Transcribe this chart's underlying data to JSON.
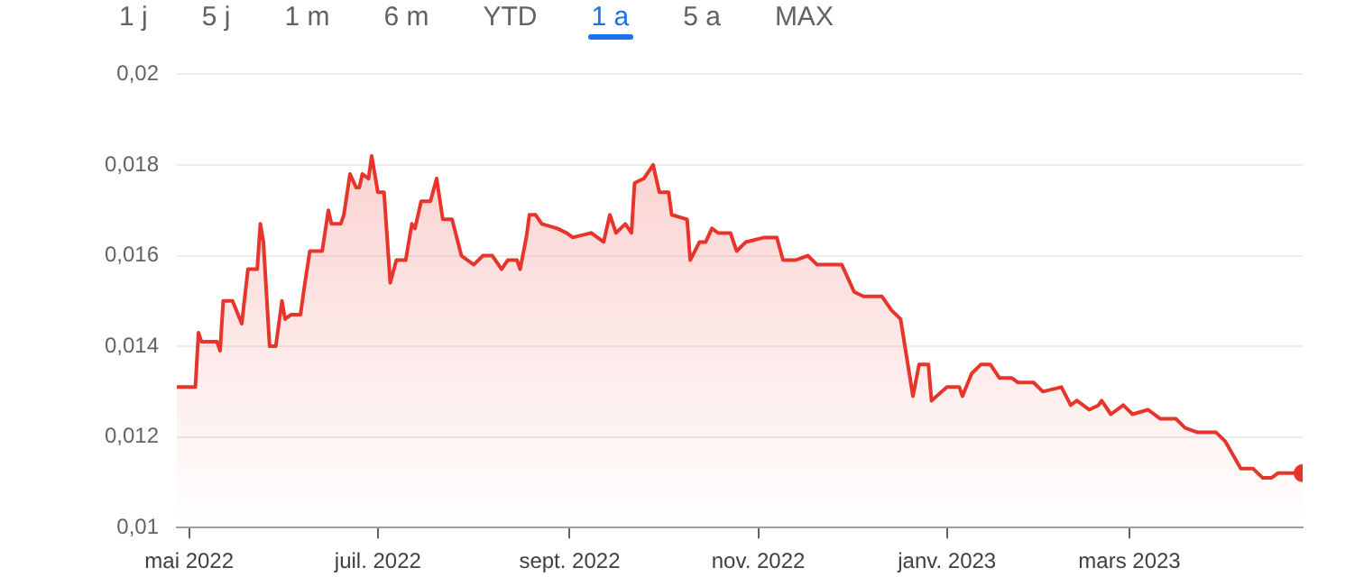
{
  "chart_data": {
    "type": "area",
    "annotations": [
      "1 j",
      "5 j",
      "1 m",
      "6 m",
      "YTD",
      "1 a",
      "5 a",
      "MAX"
    ],
    "x": [
      "2022-04-27",
      "2022-05-03",
      "2022-05-04",
      "2022-05-05",
      "2022-05-10",
      "2022-05-11",
      "2022-05-12",
      "2022-05-15",
      "2022-05-18",
      "2022-05-20",
      "2022-05-23",
      "2022-05-24",
      "2022-05-25",
      "2022-05-27",
      "2022-05-29",
      "2022-05-31",
      "2022-06-01",
      "2022-06-03",
      "2022-06-06",
      "2022-06-07",
      "2022-06-09",
      "2022-06-13",
      "2022-06-15",
      "2022-06-16",
      "2022-06-19",
      "2022-06-20",
      "2022-06-22",
      "2022-06-24",
      "2022-06-25",
      "2022-06-26",
      "2022-06-28",
      "2022-06-29",
      "2022-07-01",
      "2022-07-03",
      "2022-07-05",
      "2022-07-07",
      "2022-07-10",
      "2022-07-12",
      "2022-07-13",
      "2022-07-15",
      "2022-07-18",
      "2022-07-20",
      "2022-07-22",
      "2022-07-25",
      "2022-07-28",
      "2022-08-01",
      "2022-08-04",
      "2022-08-07",
      "2022-08-10",
      "2022-08-12",
      "2022-08-15",
      "2022-08-16",
      "2022-08-18",
      "2022-08-19",
      "2022-08-21",
      "2022-08-23",
      "2022-08-28",
      "2022-08-31",
      "2022-09-02",
      "2022-09-08",
      "2022-09-12",
      "2022-09-14",
      "2022-09-16",
      "2022-09-19",
      "2022-09-21",
      "2022-09-22",
      "2022-09-25",
      "2022-09-28",
      "2022-09-30",
      "2022-10-03",
      "2022-10-04",
      "2022-10-09",
      "2022-10-10",
      "2022-10-13",
      "2022-10-15",
      "2022-10-17",
      "2022-10-19",
      "2022-10-23",
      "2022-10-25",
      "2022-10-28",
      "2022-11-03",
      "2022-11-07",
      "2022-11-09",
      "2022-11-13",
      "2022-11-17",
      "2022-11-20",
      "2022-11-28",
      "2022-12-02",
      "2022-12-05",
      "2022-12-11",
      "2022-12-14",
      "2022-12-17",
      "2022-12-21",
      "2022-12-23",
      "2022-12-26",
      "2022-12-27",
      "2023-01-01",
      "2023-01-05",
      "2023-01-06",
      "2023-01-09",
      "2023-01-12",
      "2023-01-15",
      "2023-01-18",
      "2023-01-22",
      "2023-01-24",
      "2023-01-29",
      "2023-02-01",
      "2023-02-07",
      "2023-02-10",
      "2023-02-12",
      "2023-02-16",
      "2023-02-19",
      "2023-02-20",
      "2023-02-23",
      "2023-02-27",
      "2023-03-02",
      "2023-03-07",
      "2023-03-11",
      "2023-03-16",
      "2023-03-19",
      "2023-03-23",
      "2023-03-29",
      "2023-04-01",
      "2023-04-06",
      "2023-04-10",
      "2023-04-13",
      "2023-04-16",
      "2023-04-18",
      "2023-04-26"
    ],
    "series": [
      {
        "color": "#e8352b",
        "values": [
          0.0131,
          0.0131,
          0.0143,
          0.0141,
          0.0141,
          0.0139,
          0.015,
          0.015,
          0.0145,
          0.0157,
          0.0157,
          0.0167,
          0.0163,
          0.014,
          0.014,
          0.015,
          0.0146,
          0.0147,
          0.0147,
          0.0152,
          0.0161,
          0.0161,
          0.017,
          0.0167,
          0.0167,
          0.0169,
          0.0178,
          0.0175,
          0.0175,
          0.0178,
          0.0177,
          0.0182,
          0.0174,
          0.0174,
          0.0154,
          0.0159,
          0.0159,
          0.0167,
          0.0166,
          0.0172,
          0.0172,
          0.0177,
          0.0168,
          0.0168,
          0.016,
          0.0158,
          0.016,
          0.016,
          0.0157,
          0.0159,
          0.0159,
          0.0157,
          0.0164,
          0.0169,
          0.0169,
          0.0167,
          0.0166,
          0.0165,
          0.0164,
          0.0165,
          0.0163,
          0.0169,
          0.0165,
          0.0167,
          0.0165,
          0.0176,
          0.0177,
          0.018,
          0.0174,
          0.0174,
          0.0169,
          0.0168,
          0.0159,
          0.0163,
          0.0163,
          0.0166,
          0.0165,
          0.0165,
          0.0161,
          0.0163,
          0.0164,
          0.0164,
          0.0159,
          0.0159,
          0.016,
          0.0158,
          0.0158,
          0.0152,
          0.0151,
          0.0151,
          0.0148,
          0.0146,
          0.0129,
          0.0136,
          0.0136,
          0.0128,
          0.0131,
          0.0131,
          0.0129,
          0.0134,
          0.0136,
          0.0136,
          0.0133,
          0.0133,
          0.0132,
          0.0132,
          0.013,
          0.0131,
          0.0127,
          0.0128,
          0.0126,
          0.0127,
          0.0128,
          0.0125,
          0.0127,
          0.0125,
          0.0126,
          0.0124,
          0.0124,
          0.0122,
          0.0121,
          0.0121,
          0.0119,
          0.0113,
          0.0113,
          0.0111,
          0.0111,
          0.0112,
          0.0112
        ]
      }
    ],
    "xlim": [
      "2022-04-27",
      "2023-04-26"
    ],
    "xticks": [
      {
        "value": "2022-05-01",
        "label": "mai 2022"
      },
      {
        "value": "2022-07-01",
        "label": "juil. 2022"
      },
      {
        "value": "2022-09-01",
        "label": "sept. 2022"
      },
      {
        "value": "2022-11-01",
        "label": "nov. 2022"
      },
      {
        "value": "2023-01-01",
        "label": "janv. 2023"
      },
      {
        "value": "2023-03-01",
        "label": "mars 2023"
      }
    ],
    "ylim": [
      0.01,
      0.02
    ],
    "yticks": [
      {
        "value": 0.01,
        "label": "0,01"
      },
      {
        "value": 0.012,
        "label": "0,012"
      },
      {
        "value": 0.014,
        "label": "0,014"
      },
      {
        "value": 0.016,
        "label": "0,016"
      },
      {
        "value": 0.018,
        "label": "0,018"
      },
      {
        "value": 0.02,
        "label": "0,02"
      }
    ],
    "grid": "y"
  }
}
